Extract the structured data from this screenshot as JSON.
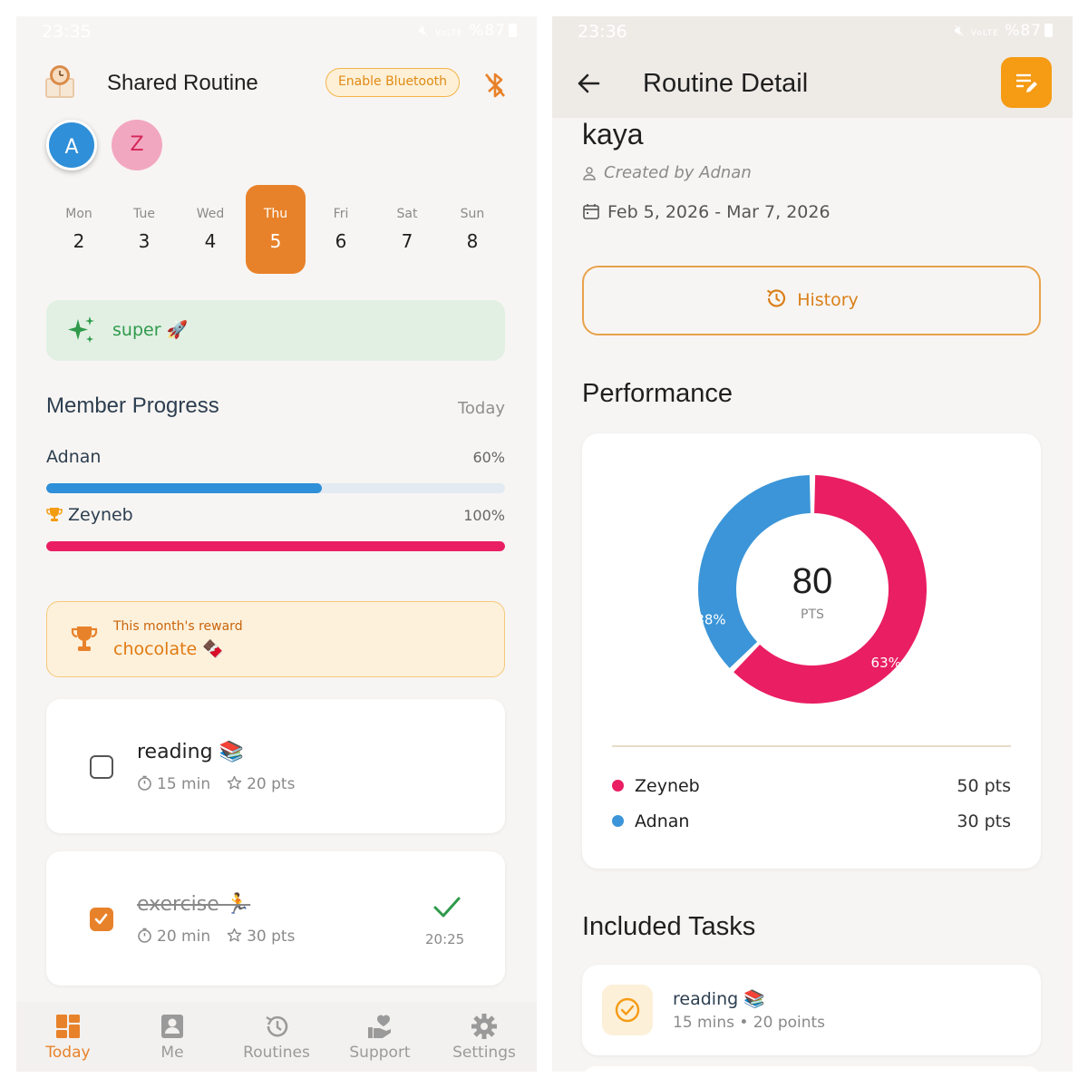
{
  "left_screen": {
    "status": {
      "time": "23:35",
      "signal_text": "VoLTE",
      "battery": "%87"
    },
    "header": {
      "title": "Shared Routine",
      "bluetooth_button": "Enable Bluetooth"
    },
    "avatars": [
      "A",
      "Z"
    ],
    "week": [
      {
        "day": "Mon",
        "num": "2",
        "active": false
      },
      {
        "day": "Tue",
        "num": "3",
        "active": false
      },
      {
        "day": "Wed",
        "num": "4",
        "active": false
      },
      {
        "day": "Thu",
        "num": "5",
        "active": true
      },
      {
        "day": "Fri",
        "num": "6",
        "active": false
      },
      {
        "day": "Sat",
        "num": "7",
        "active": false
      },
      {
        "day": "Sun",
        "num": "8",
        "active": false
      }
    ],
    "motivation": "super 🚀",
    "progress_section": {
      "title": "Member Progress",
      "period": "Today",
      "members": [
        {
          "name": "Adnan",
          "percent_text": "60%",
          "progress": 0.6,
          "color": "#2f8fd8",
          "leader": false
        },
        {
          "name": "Zeyneb",
          "percent_text": "100%",
          "progress": 1.0,
          "color": "#e91e63",
          "leader": true
        }
      ]
    },
    "reward": {
      "label": "This month's reward",
      "value": "chocolate 🍫"
    },
    "tasks": [
      {
        "name": "reading 📚",
        "duration": "15 min",
        "points": "20 pts",
        "done": false
      },
      {
        "name": "exercise 🏃",
        "duration": "20 min",
        "points": "30 pts",
        "done": true,
        "completed_at": "20:25"
      }
    ],
    "bottom_nav": [
      {
        "label": "Today",
        "icon": "dashboard-icon",
        "active": true
      },
      {
        "label": "Me",
        "icon": "person-badge-icon",
        "active": false
      },
      {
        "label": "Routines",
        "icon": "history-icon",
        "active": false
      },
      {
        "label": "Support",
        "icon": "heart-hand-icon",
        "active": false
      },
      {
        "label": "Settings",
        "icon": "gear-icon",
        "active": false
      }
    ],
    "colors": {
      "accent": "#e8822a",
      "blue": "#2f8fd8",
      "pink": "#e91e63"
    }
  },
  "right_screen": {
    "status": {
      "time": "23:36",
      "signal_text": "VoLTE",
      "battery": "%87"
    },
    "header": {
      "title": "Routine Detail"
    },
    "routine_name": "kaya",
    "created_by": "Created by Adnan",
    "date_range": "Feb 5, 2026 - Mar 7, 2026",
    "history_button": "History",
    "performance": {
      "title": "Performance",
      "total": "80",
      "unit": "PTS",
      "legend": [
        {
          "name": "Zeyneb",
          "points": "50 pts",
          "color": "#e91e63"
        },
        {
          "name": "Adnan",
          "points": "30 pts",
          "color": "#3b95d8"
        }
      ]
    },
    "included_tasks": {
      "title": "Included Tasks",
      "items": [
        {
          "name": "reading 📚",
          "meta": "15 mins • 20 points"
        }
      ]
    }
  },
  "chart_data": {
    "type": "pie",
    "variant": "donut",
    "labels": [
      "Zeyneb",
      "Adnan"
    ],
    "values": [
      50,
      30
    ],
    "slice_labels": [
      "63%",
      "38%"
    ],
    "colors": [
      "#e91e63",
      "#3b95d8"
    ],
    "center_value": "80",
    "center_unit": "PTS"
  }
}
